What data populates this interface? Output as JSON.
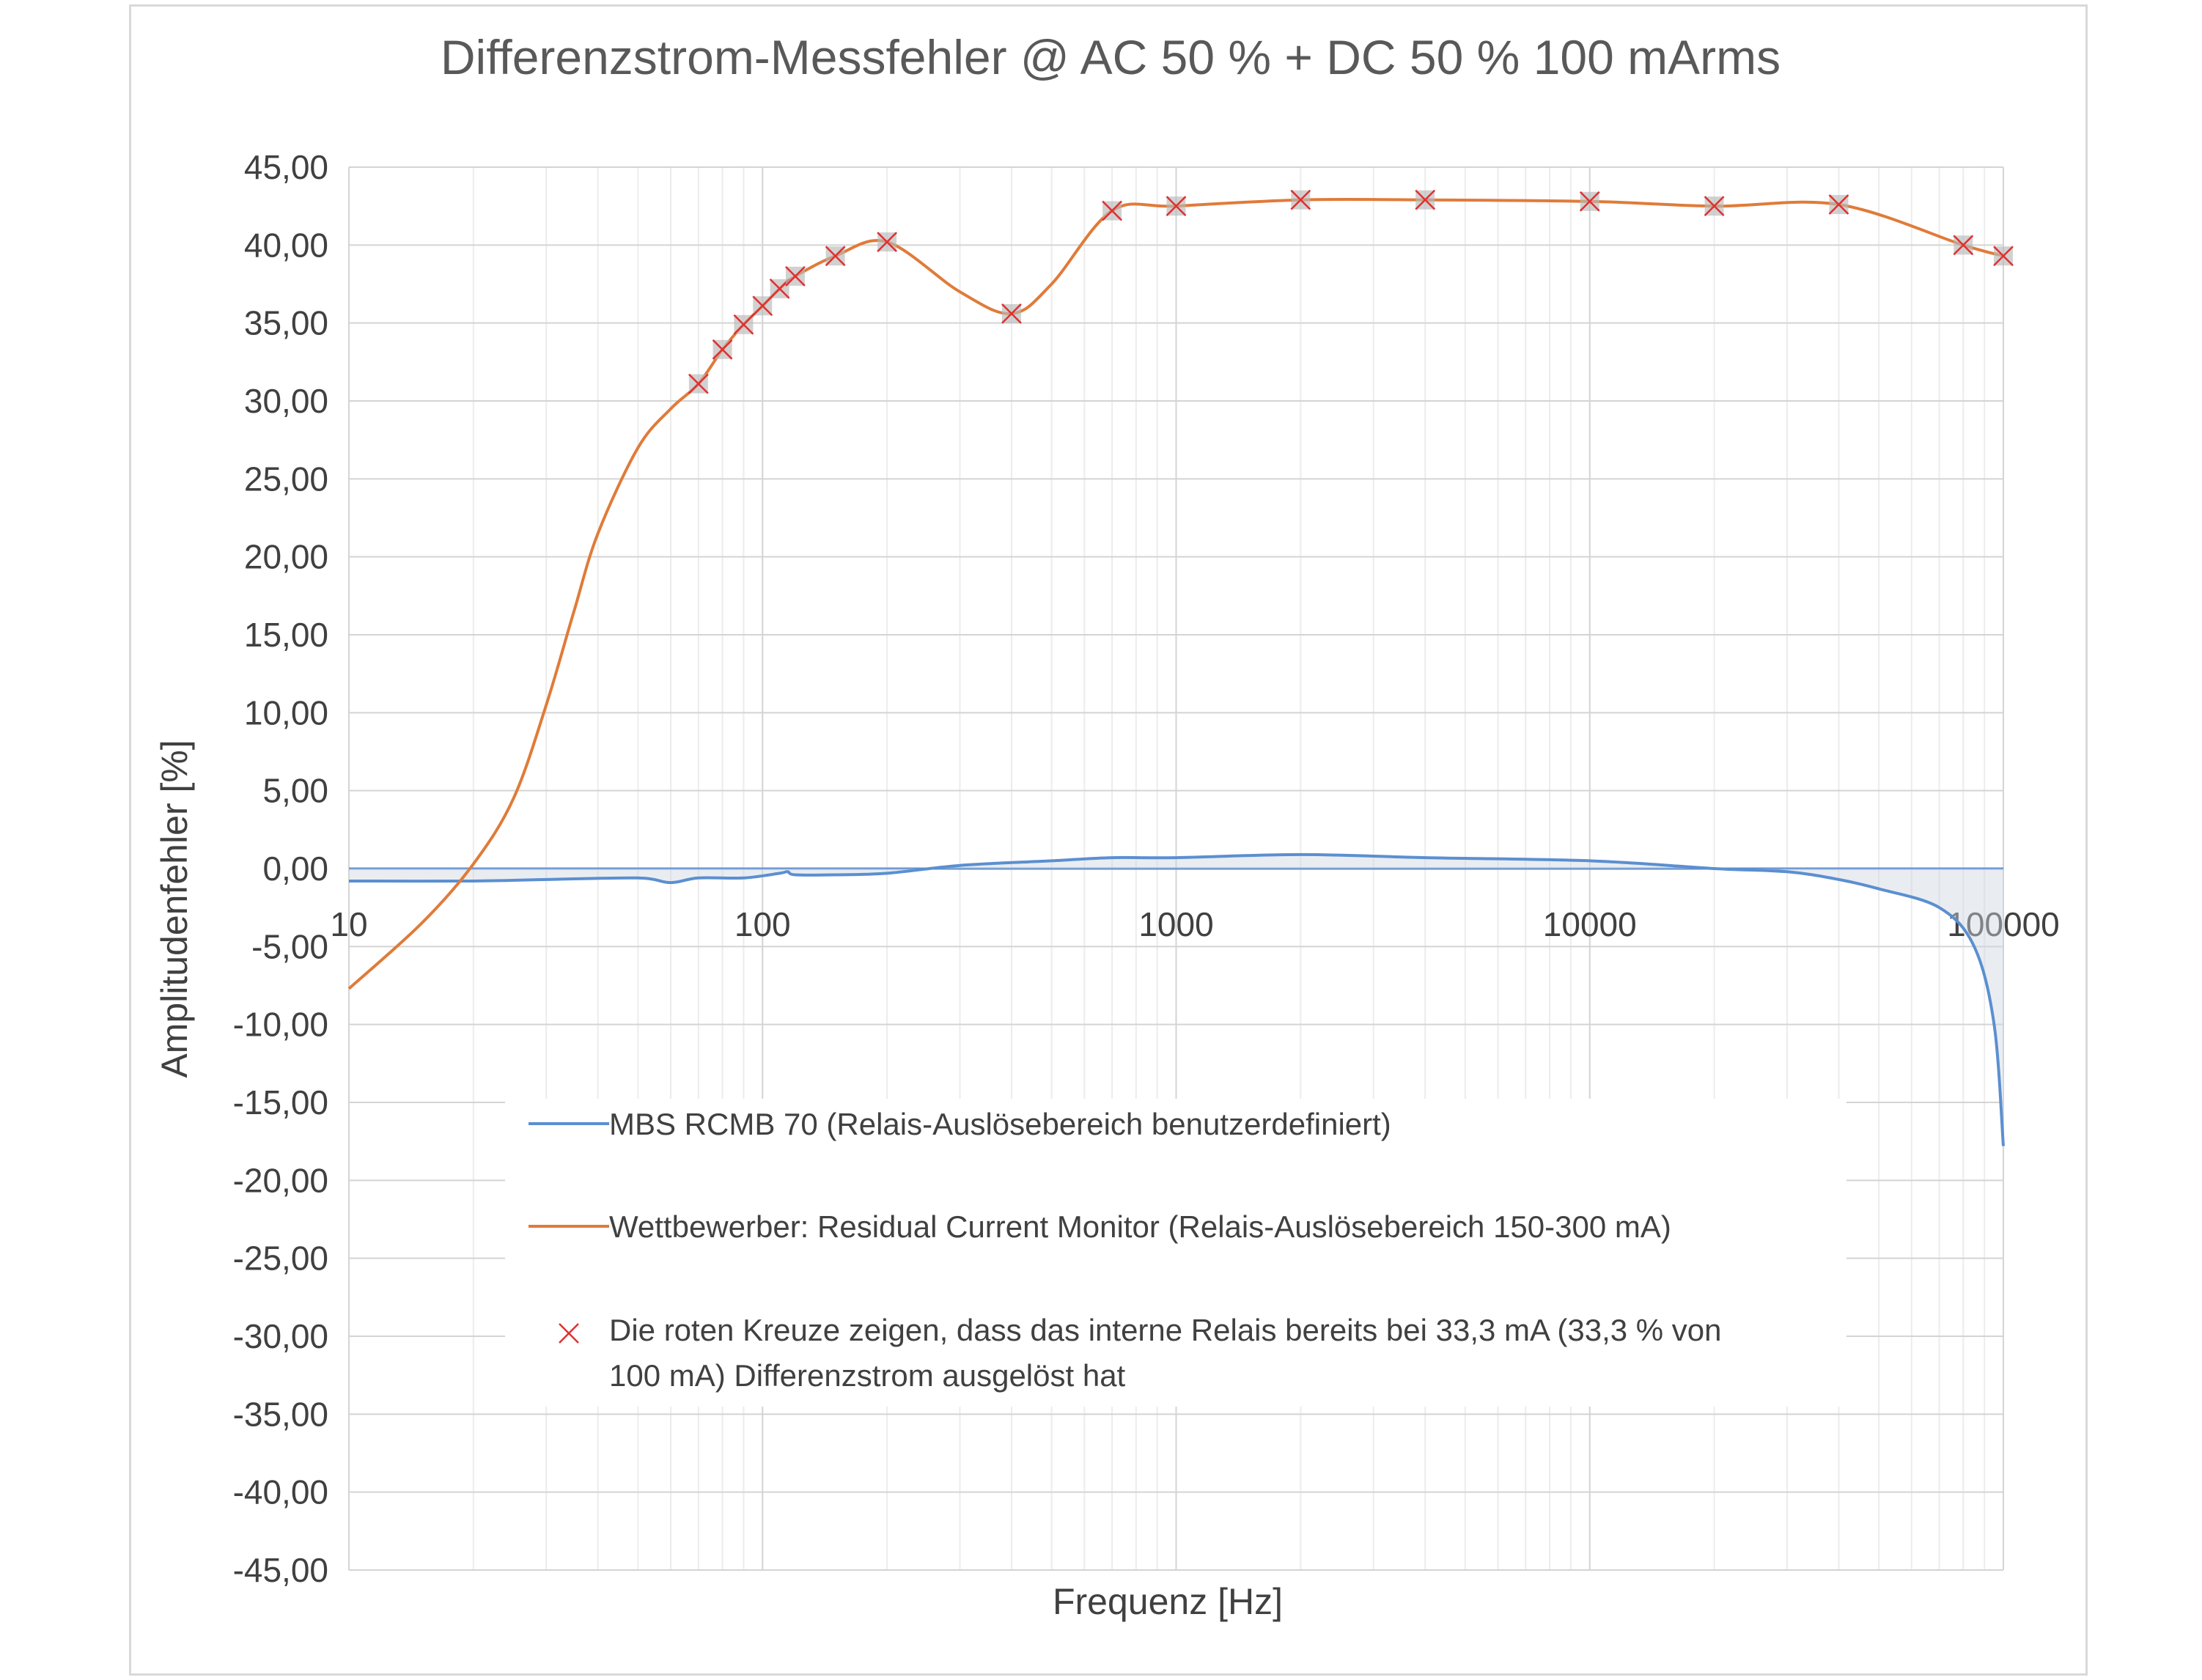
{
  "chart_data": {
    "type": "line",
    "title": "Differenzstrom-Messfehler @ AC 50 % + DC 50 % 100 mArms",
    "xlabel": "Frequenz [Hz]",
    "ylabel": "Amplitudenfehler [%]",
    "x_scale": "log",
    "xlim": [
      10,
      100000
    ],
    "ylim": [
      -45,
      45
    ],
    "x_ticks": [
      10,
      100,
      1000,
      10000,
      100000
    ],
    "x_tick_labels": [
      "10",
      "100",
      "1000",
      "10000",
      "100000"
    ],
    "y_ticks": [
      45,
      40,
      35,
      30,
      25,
      20,
      15,
      10,
      5,
      0,
      -5,
      -10,
      -15,
      -20,
      -25,
      -30,
      -35,
      -40,
      -45
    ],
    "y_tick_labels": [
      "45,00",
      "40,00",
      "35,00",
      "30,00",
      "25,00",
      "20,00",
      "15,00",
      "10,00",
      "5,00",
      "0,00",
      "-5,00",
      "-10,00",
      "-15,00",
      "-20,00",
      "-25,00",
      "-30,00",
      "-35,00",
      "-40,00",
      "-45,00"
    ],
    "grid": true,
    "legend_position": "center-bottom",
    "series": [
      {
        "name": "MBS RCMB 70 (Relais-Auslösebereich benutzerdefiniert)",
        "color": "#5b8fd0",
        "x": [
          10,
          20,
          30,
          50,
          60,
          70,
          90,
          110,
          115,
          120,
          150,
          200,
          300,
          500,
          700,
          1000,
          2000,
          4000,
          10000,
          20000,
          30000,
          40000,
          50000,
          70000,
          85000,
          95000,
          100000
        ],
        "y": [
          -0.8,
          -0.8,
          -0.7,
          -0.6,
          -0.9,
          -0.6,
          -0.6,
          -0.3,
          -0.2,
          -0.4,
          -0.4,
          -0.3,
          0.2,
          0.5,
          0.7,
          0.7,
          0.9,
          0.7,
          0.5,
          0.0,
          -0.2,
          -0.7,
          -1.3,
          -2.5,
          -5.0,
          -10.0,
          -17.8
        ]
      },
      {
        "name": "Wettbewerber: Residual Current Monitor (Relais-Auslösebereich 150-300 mA)",
        "color": "#e07b39",
        "x": [
          10,
          15,
          20,
          25,
          30,
          35,
          40,
          50,
          60,
          70,
          80,
          90,
          100,
          110,
          120,
          150,
          200,
          300,
          400,
          500,
          700,
          1000,
          2000,
          4000,
          10000,
          20000,
          40000,
          80000,
          100000
        ],
        "y": [
          -7.7,
          -3.5,
          0.3,
          4.5,
          10.5,
          16.5,
          21.5,
          27.0,
          29.5,
          31.1,
          33.3,
          34.9,
          36.1,
          37.2,
          38.0,
          39.3,
          40.2,
          37.0,
          35.6,
          37.5,
          42.2,
          42.5,
          42.9,
          42.9,
          42.8,
          42.5,
          42.6,
          40.0,
          39.3
        ]
      }
    ],
    "markers": {
      "description": "Die roten Kreuze zeigen, dass das interne Relais bereits bei 33,3 mA (33,3 % von 100 mA) Differenzstrom ausgelöst hat",
      "description_lines": [
        "Die roten Kreuze zeigen, dass das interne Relais bereits bei 33,3 mA (33,3 % von",
        "100 mA) Differenzstrom ausgelöst hat"
      ],
      "color": "#e03030",
      "x": [
        70,
        80,
        90,
        100,
        110,
        120,
        150,
        200,
        400,
        700,
        1000,
        2000,
        4000,
        10000,
        20000,
        40000,
        80000,
        100000
      ],
      "y": [
        31.1,
        33.3,
        34.9,
        36.1,
        37.2,
        38.0,
        39.3,
        40.2,
        35.6,
        42.2,
        42.5,
        42.9,
        42.9,
        42.8,
        42.5,
        42.6,
        40.0,
        39.3
      ]
    },
    "reference_line": {
      "y": 0,
      "color": "#5b8fd0"
    }
  }
}
